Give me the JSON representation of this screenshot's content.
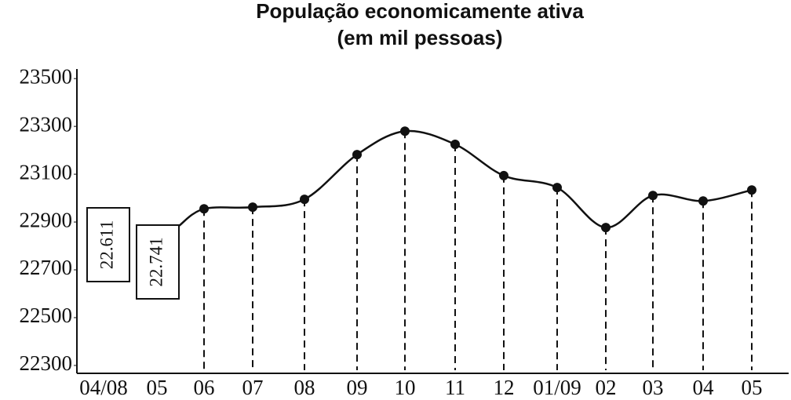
{
  "chart_data": {
    "type": "line",
    "title": "População economicamente ativa",
    "subtitle": "(em mil pessoas)",
    "categories": [
      "04/08",
      "05",
      "06",
      "07",
      "08",
      "09",
      "10",
      "11",
      "12",
      "01/09",
      "02",
      "03",
      "04",
      "05"
    ],
    "values": [
      22611,
      22741,
      22955,
      22962,
      22995,
      23182,
      23280,
      23225,
      23094,
      23044,
      22877,
      23011,
      22988,
      23034
    ],
    "value_labels": [
      "22.611",
      "22.741",
      null,
      null,
      null,
      null,
      null,
      null,
      null,
      null,
      null,
      null,
      null,
      null
    ],
    "color": "#111111",
    "ylim": [
      22267,
      23540
    ],
    "yticks": [
      22300,
      22500,
      22700,
      22900,
      23100,
      23300,
      23500
    ]
  }
}
